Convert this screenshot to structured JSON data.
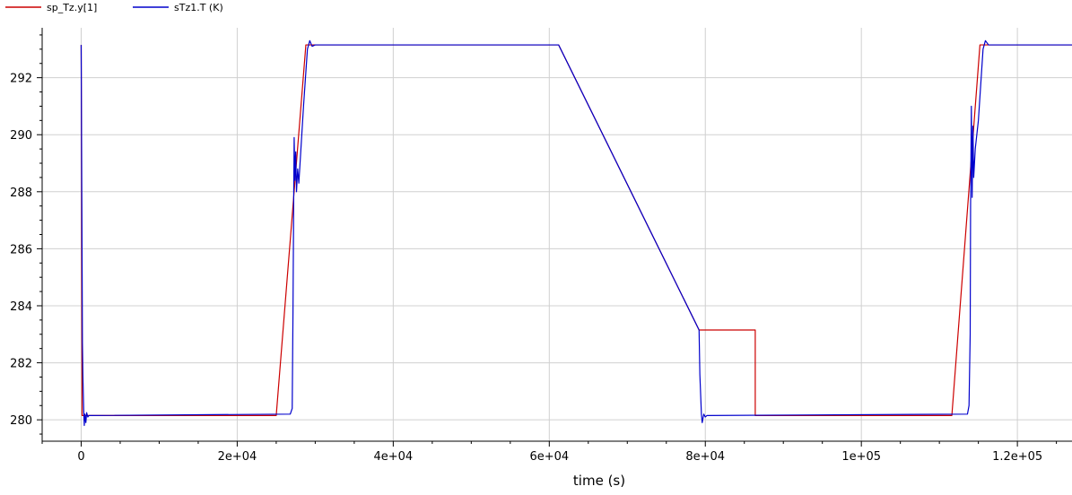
{
  "chart_data": {
    "type": "line",
    "title": "",
    "xlabel": "time (s)",
    "ylabel": "",
    "xlim": [
      -5000,
      127000
    ],
    "ylim": [
      279.25,
      293.75
    ],
    "grid": true,
    "legend": "top-left",
    "x_ticks": [
      {
        "value": 0,
        "label": "0"
      },
      {
        "value": 20000,
        "label": "2e+04"
      },
      {
        "value": 40000,
        "label": "4e+04"
      },
      {
        "value": 60000,
        "label": "6e+04"
      },
      {
        "value": 80000,
        "label": "8e+04"
      },
      {
        "value": 100000,
        "label": "1e+05"
      },
      {
        "value": 120000,
        "label": "1.2e+05"
      }
    ],
    "y_ticks": [
      {
        "value": 280,
        "label": "280"
      },
      {
        "value": 282,
        "label": "282"
      },
      {
        "value": 284,
        "label": "284"
      },
      {
        "value": 286,
        "label": "286"
      },
      {
        "value": 288,
        "label": "288"
      },
      {
        "value": 290,
        "label": "290"
      },
      {
        "value": 292,
        "label": "292"
      }
    ],
    "series": [
      {
        "name": "sp_Tz.y[1]",
        "color": "#cc0000",
        "points": [
          [
            0,
            293.15
          ],
          [
            120,
            280.15
          ],
          [
            25000,
            280.15
          ],
          [
            28800,
            293.15
          ],
          [
            43400,
            293.15
          ],
          [
            61200,
            293.15
          ],
          [
            79200,
            283.15
          ],
          [
            86400,
            283.15
          ],
          [
            86400,
            280.15
          ],
          [
            111600,
            280.15
          ],
          [
            115200,
            293.15
          ],
          [
            127000,
            293.15
          ]
        ]
      },
      {
        "name": "sTz1.T (K)",
        "color": "#0000cc",
        "points": [
          [
            0,
            293.15
          ],
          [
            80,
            288.0
          ],
          [
            160,
            282.7
          ],
          [
            240,
            281.3
          ],
          [
            320,
            280.4
          ],
          [
            400,
            279.8
          ],
          [
            480,
            280.2
          ],
          [
            600,
            279.9
          ],
          [
            700,
            280.25
          ],
          [
            850,
            280.1
          ],
          [
            1000,
            280.15
          ],
          [
            26800,
            280.2
          ],
          [
            27050,
            280.4
          ],
          [
            27150,
            283.8
          ],
          [
            27250,
            288.2
          ],
          [
            27300,
            289.9
          ],
          [
            27400,
            288.4
          ],
          [
            27500,
            289.4
          ],
          [
            27600,
            288.0
          ],
          [
            27750,
            288.8
          ],
          [
            27900,
            288.3
          ],
          [
            28500,
            291.0
          ],
          [
            29000,
            293.0
          ],
          [
            29300,
            293.3
          ],
          [
            29600,
            293.1
          ],
          [
            30000,
            293.15
          ],
          [
            61200,
            293.15
          ],
          [
            79200,
            283.15
          ],
          [
            79300,
            281.6
          ],
          [
            79500,
            280.2
          ],
          [
            79600,
            279.9
          ],
          [
            79800,
            280.2
          ],
          [
            80000,
            280.1
          ],
          [
            80200,
            280.15
          ],
          [
            113600,
            280.2
          ],
          [
            113800,
            280.5
          ],
          [
            113950,
            283.0
          ],
          [
            114000,
            287.5
          ],
          [
            114100,
            291.0
          ],
          [
            114200,
            287.8
          ],
          [
            114300,
            290.3
          ],
          [
            114400,
            288.5
          ],
          [
            114600,
            289.5
          ],
          [
            115000,
            290.5
          ],
          [
            115600,
            293.0
          ],
          [
            115900,
            293.3
          ],
          [
            116300,
            293.15
          ],
          [
            127000,
            293.15
          ]
        ]
      }
    ]
  }
}
